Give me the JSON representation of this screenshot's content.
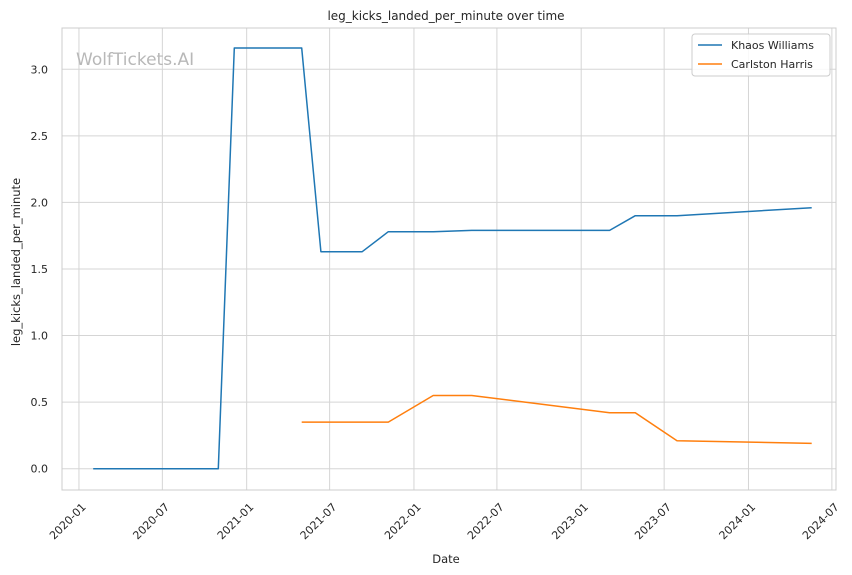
{
  "chart_data": {
    "type": "line",
    "title": "leg_kicks_landed_per_minute over time",
    "xlabel": "Date",
    "ylabel": "leg_kicks_landed_per_minute",
    "watermark": "WolfTickets.AI",
    "x_range": [
      "2019-11-25",
      "2024-07-10"
    ],
    "ylim": [
      -0.16,
      3.31
    ],
    "x_ticks": [
      "2020-01",
      "2020-07",
      "2021-01",
      "2021-07",
      "2022-01",
      "2022-07",
      "2023-01",
      "2023-07",
      "2024-01",
      "2024-07"
    ],
    "y_ticks": [
      "0.0",
      "0.5",
      "1.0",
      "1.5",
      "2.0",
      "2.5",
      "3.0"
    ],
    "grid": true,
    "legend_position": "top-right",
    "series": [
      {
        "name": "Khaos Williams",
        "color": "#1f77b4",
        "points": [
          {
            "x": "2020-02-01",
            "y": 0.0
          },
          {
            "x": "2020-10-31",
            "y": 0.0
          },
          {
            "x": "2020-12-05",
            "y": 3.16
          },
          {
            "x": "2021-05-01",
            "y": 3.16
          },
          {
            "x": "2021-06-12",
            "y": 1.63
          },
          {
            "x": "2021-09-10",
            "y": 1.63
          },
          {
            "x": "2021-11-06",
            "y": 1.78
          },
          {
            "x": "2022-02-12",
            "y": 1.78
          },
          {
            "x": "2022-05-07",
            "y": 1.79
          },
          {
            "x": "2023-03-04",
            "y": 1.79
          },
          {
            "x": "2023-04-29",
            "y": 1.9
          },
          {
            "x": "2023-07-29",
            "y": 1.9
          },
          {
            "x": "2024-05-18",
            "y": 1.96
          }
        ]
      },
      {
        "name": "Carlston Harris",
        "color": "#ff7f0e",
        "points": [
          {
            "x": "2021-05-01",
            "y": 0.35
          },
          {
            "x": "2021-11-06",
            "y": 0.35
          },
          {
            "x": "2022-02-12",
            "y": 0.55
          },
          {
            "x": "2022-05-07",
            "y": 0.55
          },
          {
            "x": "2023-03-04",
            "y": 0.42
          },
          {
            "x": "2023-04-29",
            "y": 0.42
          },
          {
            "x": "2023-07-29",
            "y": 0.21
          },
          {
            "x": "2024-05-18",
            "y": 0.19
          }
        ]
      }
    ]
  }
}
